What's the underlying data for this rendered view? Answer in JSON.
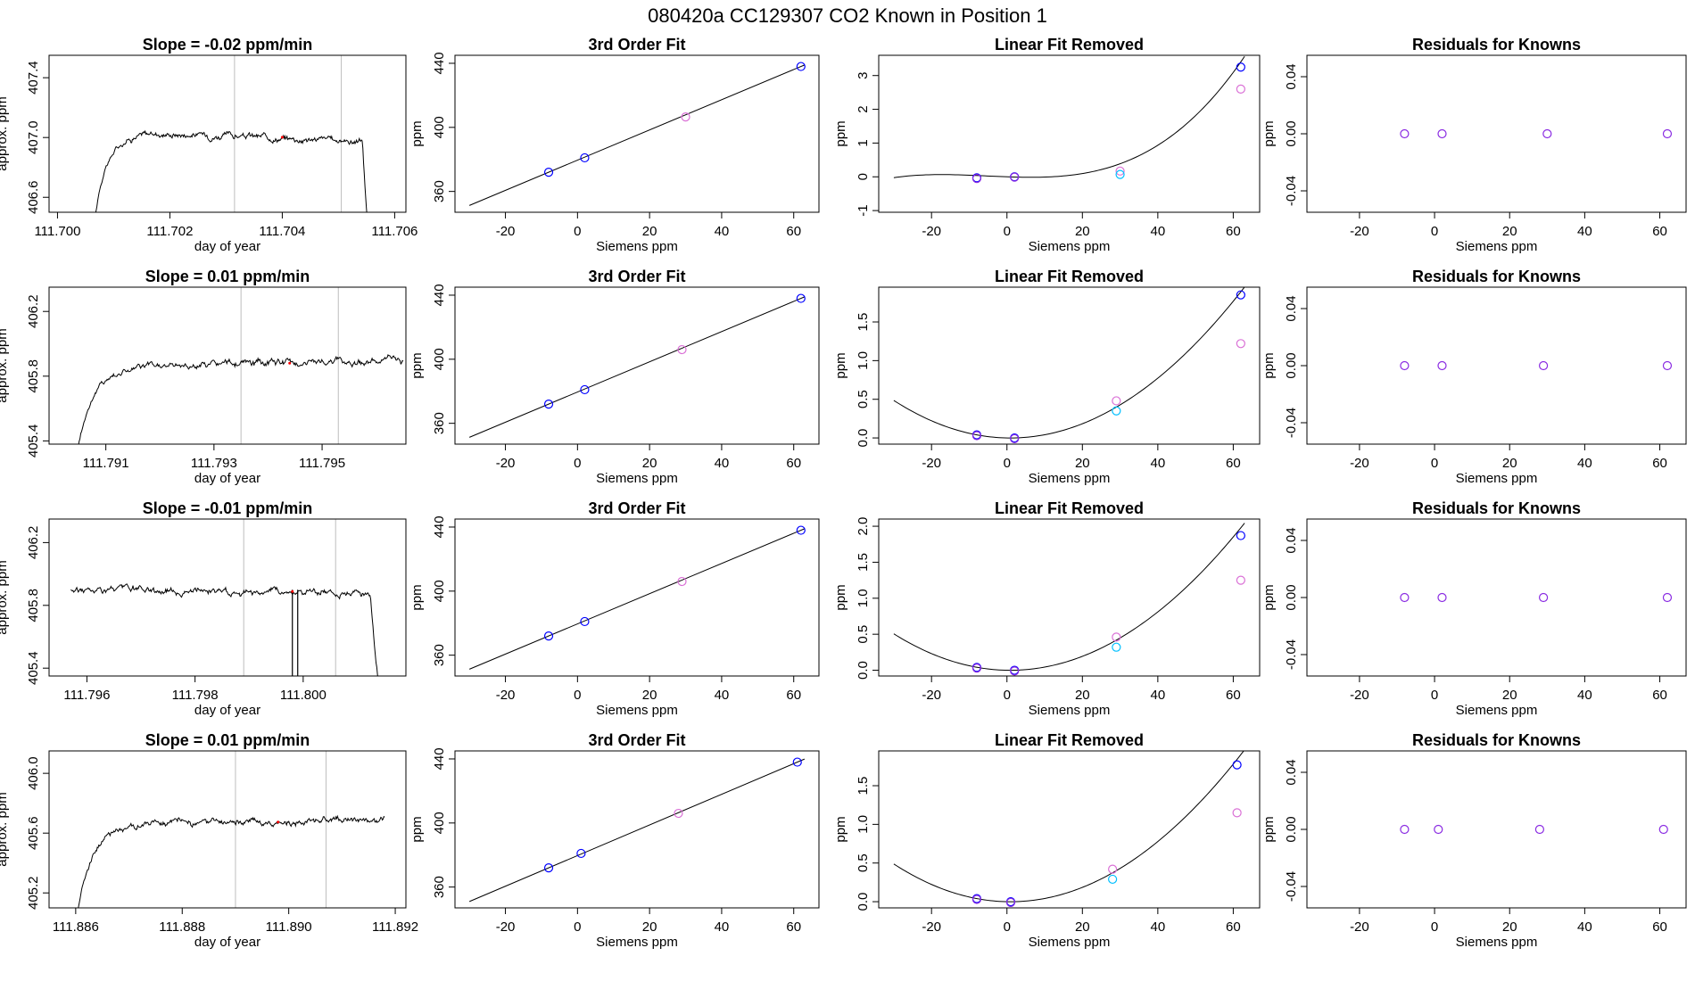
{
  "page_title": "080420a      CC129307    CO2 Known in Position  1",
  "colors": {
    "axis": "#000000",
    "grid": "#bebebe",
    "blue": "#0000ff",
    "cyan": "#00bfff",
    "magenta": "#da70d6",
    "purple": "#8a2be2",
    "red": "#ff0000"
  },
  "labels": {
    "time_x": "day of year",
    "time_y": "approx. ppm",
    "siemens_x": "Siemens ppm",
    "ppm_y": "ppm",
    "fit_title": "3rd Order Fit",
    "lin_title": "Linear Fit Removed",
    "res_title": "Residuals for Knowns"
  },
  "chart_data": [
    {
      "row": 1,
      "timeseries": {
        "type": "line",
        "title": "Slope =  -0.02  ppm/min",
        "xlim": [
          111.69985,
          111.7062
        ],
        "ylim": [
          406.5,
          407.55
        ],
        "xticks": [
          "111.700",
          "111.702",
          "111.704",
          "111.706"
        ],
        "yticks": [
          "406.6",
          "407.0",
          "407.4"
        ],
        "start": 111.7005,
        "end": 111.7058,
        "plateau": 407.05,
        "drift_total": -0.08,
        "base": 405.9,
        "vlines": [
          111.70315,
          111.70505
        ],
        "mark": 111.704
      },
      "fit": {
        "type": "scatter",
        "title": "3rd Order Fit",
        "xlim": [
          -34,
          67
        ],
        "ylim": [
          347,
          445
        ],
        "xticks": [
          "-20",
          "0",
          "20",
          "40",
          "60"
        ],
        "yticks": [
          "360",
          "400",
          "440"
        ],
        "points_x": [
          -8,
          2,
          30,
          62
        ],
        "points_y": [
          372,
          381,
          406.5,
          438
        ],
        "point_colors": [
          "blue",
          "blue",
          "magenta",
          "blue"
        ]
      },
      "linear_removed": {
        "type": "scatter",
        "title": "Linear Fit Removed",
        "xlim": [
          -34,
          67
        ],
        "ylim": [
          -1.05,
          3.6
        ],
        "xticks": [
          "-20",
          "0",
          "20",
          "40",
          "60"
        ],
        "yticks": [
          "-1",
          "0",
          "1",
          "2",
          "3"
        ],
        "curve": [
          -3e-07,
          1e-05,
          0.0001,
          0.01
        ],
        "curve_range": [
          -30,
          63
        ],
        "points": [
          {
            "x": -8,
            "y": -0.03,
            "color": "blue"
          },
          {
            "x": -8,
            "y": -0.05,
            "color": "purple"
          },
          {
            "x": 2,
            "y": 0.0,
            "color": "blue"
          },
          {
            "x": 2,
            "y": -0.01,
            "color": "purple"
          },
          {
            "x": 30,
            "y": 0.17,
            "color": "magenta"
          },
          {
            "x": 30,
            "y": 0.07,
            "color": "cyan"
          },
          {
            "x": 62,
            "y": 3.25,
            "color": "blue"
          },
          {
            "x": 62,
            "y": 2.6,
            "color": "magenta"
          }
        ]
      },
      "residuals": {
        "type": "scatter",
        "title": "Residuals for Knowns",
        "xlim": [
          -34,
          67
        ],
        "ylim": [
          -0.055,
          0.055
        ],
        "xticks": [
          "-20",
          "0",
          "20",
          "40",
          "60"
        ],
        "yticks": [
          "-0.04",
          "0.00",
          "0.04"
        ],
        "points_x": [
          -8,
          2,
          30,
          62
        ],
        "points_y": [
          0,
          0,
          0,
          0
        ]
      }
    },
    {
      "row": 2,
      "timeseries": {
        "type": "line",
        "title": "Slope =  0.01  ppm/min",
        "xlim": [
          111.78995,
          111.79655
        ],
        "ylim": [
          405.38,
          406.35
        ],
        "xticks": [
          "111.791",
          "111.793",
          "111.795"
        ],
        "yticks": [
          "405.4",
          "405.8",
          "406.2"
        ],
        "start": 111.7903,
        "end": 111.7965,
        "plateau": 405.85,
        "drift_total": 0.05,
        "base": 404.9,
        "vlines": [
          111.7935,
          111.7953
        ],
        "mark": 111.7944
      },
      "fit": {
        "type": "scatter",
        "title": "3rd Order Fit",
        "xlim": [
          -34,
          67
        ],
        "ylim": [
          347,
          445
        ],
        "xticks": [
          "-20",
          "0",
          "20",
          "40",
          "60"
        ],
        "yticks": [
          "360",
          "400",
          "440"
        ],
        "points_x": [
          -8,
          2,
          29,
          62
        ],
        "points_y": [
          372,
          381,
          406,
          438
        ],
        "point_colors": [
          "blue",
          "blue",
          "magenta",
          "blue"
        ]
      },
      "linear_removed": {
        "type": "scatter",
        "title": "Linear Fit Removed",
        "xlim": [
          -34,
          67
        ],
        "ylim": [
          -0.08,
          1.95
        ],
        "xticks": [
          "-20",
          "0",
          "20",
          "40",
          "60"
        ],
        "yticks": [
          "0.0",
          "0.5",
          "1.0",
          "1.5"
        ],
        "curve": [
          0,
          0.000507,
          -0.000953,
          -4.88e-05
        ],
        "curve_range": [
          -30,
          63
        ],
        "points": [
          {
            "x": -8,
            "y": 0.04,
            "color": "blue"
          },
          {
            "x": -8,
            "y": 0.03,
            "color": "purple"
          },
          {
            "x": 2,
            "y": 0.0,
            "color": "blue"
          },
          {
            "x": 2,
            "y": -0.01,
            "color": "purple"
          },
          {
            "x": 29,
            "y": 0.48,
            "color": "magenta"
          },
          {
            "x": 29,
            "y": 0.35,
            "color": "cyan"
          },
          {
            "x": 62,
            "y": 1.85,
            "color": "blue"
          },
          {
            "x": 62,
            "y": 1.22,
            "color": "magenta"
          }
        ]
      },
      "residuals": {
        "type": "scatter",
        "title": "Residuals for Knowns",
        "xlim": [
          -34,
          67
        ],
        "ylim": [
          -0.055,
          0.055
        ],
        "xticks": [
          "-20",
          "0",
          "20",
          "40",
          "60"
        ],
        "yticks": [
          "-0.04",
          "0.00",
          "0.04"
        ],
        "points_x": [
          -8,
          2,
          29,
          62
        ],
        "points_y": [
          0,
          0,
          0,
          0
        ]
      }
    },
    {
      "row": 3,
      "timeseries": {
        "type": "line",
        "title": "Slope =  -0.01  ppm/min",
        "xlim": [
          111.7953,
          111.8019
        ],
        "ylim": [
          405.35,
          406.35
        ],
        "xticks": [
          "111.796",
          "111.798",
          "111.800"
        ],
        "yticks": [
          "405.4",
          "405.8",
          "406.2"
        ],
        "start": 111.7957,
        "end": 111.8016,
        "plateau": 405.9,
        "drift_total": -0.02,
        "base": 404.9,
        "vlines": [
          111.7989,
          111.8006
        ],
        "mark": 111.7998,
        "spike_x": 111.7998,
        "spike_w": 8e-05
      },
      "fit": {
        "type": "scatter",
        "title": "3rd Order Fit",
        "xlim": [
          -34,
          67
        ],
        "ylim": [
          347,
          445
        ],
        "xticks": [
          "-20",
          "0",
          "20",
          "40",
          "60"
        ],
        "yticks": [
          "360",
          "400",
          "440"
        ],
        "points_x": [
          -8,
          2,
          29,
          62
        ],
        "points_y": [
          372,
          381,
          406,
          438
        ],
        "point_colors": [
          "blue",
          "blue",
          "magenta",
          "blue"
        ]
      },
      "linear_removed": {
        "type": "scatter",
        "title": "Linear Fit Removed",
        "xlim": [
          -34,
          67
        ],
        "ylim": [
          -0.08,
          2.1
        ],
        "xticks": [
          "-20",
          "0",
          "20",
          "40",
          "60"
        ],
        "yticks": [
          "0.0",
          "0.5",
          "1.0",
          "1.5",
          "2.0"
        ],
        "curve": [
          0,
          0.00053,
          -0.00095,
          -5e-05
        ],
        "curve_range": [
          -30,
          63
        ],
        "points": [
          {
            "x": -8,
            "y": 0.04,
            "color": "blue"
          },
          {
            "x": -8,
            "y": 0.03,
            "color": "purple"
          },
          {
            "x": 2,
            "y": 0.0,
            "color": "blue"
          },
          {
            "x": 2,
            "y": -0.01,
            "color": "purple"
          },
          {
            "x": 29,
            "y": 0.46,
            "color": "magenta"
          },
          {
            "x": 29,
            "y": 0.32,
            "color": "cyan"
          },
          {
            "x": 62,
            "y": 1.87,
            "color": "blue"
          },
          {
            "x": 62,
            "y": 1.25,
            "color": "magenta"
          }
        ]
      },
      "residuals": {
        "type": "scatter",
        "title": "Residuals for Knowns",
        "xlim": [
          -34,
          67
        ],
        "ylim": [
          -0.055,
          0.055
        ],
        "xticks": [
          "-20",
          "0",
          "20",
          "40",
          "60"
        ],
        "yticks": [
          "-0.04",
          "0.00",
          "0.04"
        ],
        "points_x": [
          -8,
          2,
          29,
          62
        ],
        "points_y": [
          0,
          0,
          0,
          0
        ]
      }
    },
    {
      "row": 4,
      "timeseries": {
        "type": "line",
        "title": "Slope =  0.01  ppm/min",
        "xlim": [
          111.8855,
          111.8922
        ],
        "ylim": [
          405.1,
          406.15
        ],
        "xticks": [
          "111.886",
          "111.888",
          "111.890",
          "111.892"
        ],
        "yticks": [
          "405.2",
          "405.6",
          "406.0"
        ],
        "start": 111.8859,
        "end": 111.8918,
        "plateau": 405.65,
        "drift_total": 0.04,
        "base": 404.7,
        "vlines": [
          111.889,
          111.8907
        ],
        "mark": 111.8898
      },
      "fit": {
        "type": "scatter",
        "title": "3rd Order Fit",
        "xlim": [
          -34,
          67
        ],
        "ylim": [
          347,
          445
        ],
        "xticks": [
          "-20",
          "0",
          "20",
          "40",
          "60"
        ],
        "yticks": [
          "360",
          "400",
          "440"
        ],
        "points_x": [
          -8,
          1,
          28,
          61
        ],
        "points_y": [
          372,
          381,
          406,
          438
        ],
        "point_colors": [
          "blue",
          "blue",
          "magenta",
          "blue"
        ]
      },
      "linear_removed": {
        "type": "scatter",
        "title": "Linear Fit Removed",
        "xlim": [
          -34,
          67
        ],
        "ylim": [
          -0.08,
          1.95
        ],
        "xticks": [
          "-20",
          "0",
          "20",
          "40",
          "60"
        ],
        "yticks": [
          "0.0",
          "0.5",
          "1.0",
          "1.5"
        ],
        "curve": [
          0,
          0.00051,
          -0.00095,
          -4.88e-05
        ],
        "curve_range": [
          -30,
          63
        ],
        "points": [
          {
            "x": -8,
            "y": 0.04,
            "color": "blue"
          },
          {
            "x": -8,
            "y": 0.03,
            "color": "purple"
          },
          {
            "x": 1,
            "y": 0.0,
            "color": "blue"
          },
          {
            "x": 1,
            "y": -0.01,
            "color": "purple"
          },
          {
            "x": 28,
            "y": 0.42,
            "color": "magenta"
          },
          {
            "x": 28,
            "y": 0.29,
            "color": "cyan"
          },
          {
            "x": 61,
            "y": 1.77,
            "color": "blue"
          },
          {
            "x": 61,
            "y": 1.15,
            "color": "magenta"
          }
        ]
      },
      "residuals": {
        "type": "scatter",
        "title": "Residuals for Knowns",
        "xlim": [
          -34,
          67
        ],
        "ylim": [
          -0.055,
          0.055
        ],
        "xticks": [
          "-20",
          "0",
          "20",
          "40",
          "60"
        ],
        "yticks": [
          "-0.04",
          "0.00",
          "0.04"
        ],
        "points_x": [
          -8,
          1,
          28,
          61
        ],
        "points_y": [
          0,
          0,
          0,
          0
        ]
      }
    }
  ]
}
